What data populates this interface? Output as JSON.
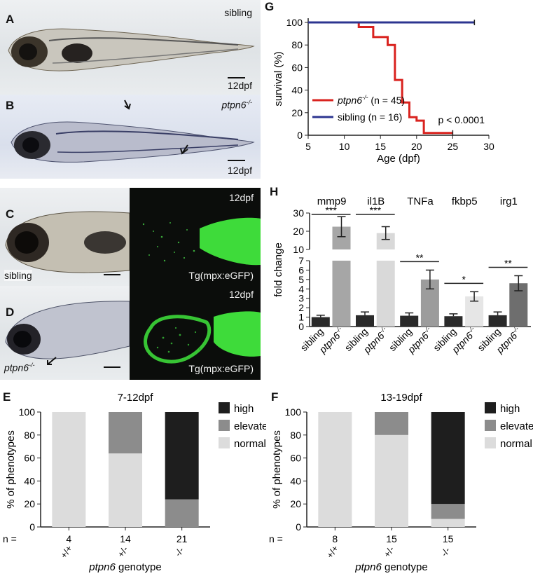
{
  "panels": {
    "A": {
      "letter": "A",
      "label": "sibling",
      "scale": "12dpf"
    },
    "B": {
      "letter": "B",
      "label": "ptpn6",
      "label_sup": "-/-",
      "scale": "12dpf"
    },
    "C": {
      "letter": "C",
      "label": "sibling",
      "fluor_top": "12dpf",
      "fluor_bottom": "Tg(mpx:eGFP)"
    },
    "D": {
      "letter": "D",
      "label": "ptpn6",
      "label_sup": "-/-",
      "fluor_top": "12dpf",
      "fluor_bottom": "Tg(mpx:eGFP)"
    },
    "E": {
      "letter": "E"
    },
    "F": {
      "letter": "F"
    },
    "G": {
      "letter": "G"
    },
    "H": {
      "letter": "H"
    }
  },
  "chart_data": [
    {
      "id": "G",
      "type": "line",
      "xlabel": "Age (dpf)",
      "ylabel": "survival (%)",
      "xlim": [
        5,
        30
      ],
      "ylim": [
        0,
        100
      ],
      "xticks": [
        5,
        10,
        15,
        20,
        25,
        30
      ],
      "yticks": [
        0,
        20,
        40,
        60,
        80,
        100
      ],
      "series": [
        {
          "name": "ptpn6",
          "name_sup": "-/-",
          "n_label": "(n = 45)",
          "color": "#d9231f",
          "step": true,
          "x": [
            5,
            12,
            12,
            14,
            14,
            16,
            16,
            17,
            17,
            18,
            18,
            19,
            19,
            20,
            20,
            21,
            21,
            25
          ],
          "y": [
            100,
            100,
            96,
            96,
            87,
            87,
            80,
            80,
            49,
            49,
            29,
            29,
            16,
            16,
            13,
            13,
            2,
            2
          ]
        },
        {
          "name": "sibling",
          "n_label": "(n = 16)",
          "color": "#2c3590",
          "step": true,
          "x": [
            5,
            28
          ],
          "y": [
            100,
            100
          ]
        }
      ],
      "annotation": "p < 0.0001",
      "legend": "bottom-left"
    },
    {
      "id": "H",
      "type": "bar",
      "ylabel": "fold change",
      "genes": [
        "mmp9",
        "il1B",
        "TNFa",
        "fkbp5",
        "irg1"
      ],
      "group_labels": [
        "sibling",
        "ptpn6"
      ],
      "group_label_sup": "-/-",
      "sibling_values": [
        1.0,
        1.2,
        1.15,
        1.1,
        1.2
      ],
      "sibling_err": [
        0.2,
        0.35,
        0.3,
        0.25,
        0.35
      ],
      "mutant_values": [
        22.5,
        19.0,
        5.0,
        3.2,
        4.6
      ],
      "mutant_err": [
        5.5,
        3.5,
        1.0,
        0.5,
        0.8
      ],
      "mutant_colors": [
        "#a6a6a6",
        "#d9d9d9",
        "#9c9c9c",
        "#e6e6e6",
        "#6e6e6e"
      ],
      "sibling_color": "#2a2a2a",
      "significance": [
        "***",
        "***",
        "**",
        "*",
        "**"
      ],
      "axis_break": {
        "lower": [
          0,
          7
        ],
        "upper": [
          10,
          30
        ]
      },
      "yticks_lower": [
        0,
        1,
        2,
        3,
        4,
        5,
        6,
        7
      ],
      "yticks_upper": [
        10,
        20,
        30
      ]
    },
    {
      "id": "E",
      "type": "bar",
      "stacked": true,
      "title": "7-12dpf",
      "ylabel": "% of phenotypes",
      "xlabel_italic": "ptpn6",
      "xlabel": "genotype",
      "n_prefix": "n =",
      "categories": [
        "+/+",
        "+/-",
        "-/-"
      ],
      "n": [
        "4",
        "14",
        "21"
      ],
      "ylim": [
        0,
        100
      ],
      "yticks": [
        0,
        20,
        40,
        60,
        80,
        100
      ],
      "series": [
        {
          "name": "normal",
          "color": "#dcdcdc",
          "values": [
            100,
            64,
            0
          ]
        },
        {
          "name": "elevated",
          "color": "#8c8c8c",
          "values": [
            0,
            36,
            24
          ]
        },
        {
          "name": "high",
          "color": "#1e1e1e",
          "values": [
            0,
            0,
            76
          ]
        }
      ],
      "legend": "right"
    },
    {
      "id": "F",
      "type": "bar",
      "stacked": true,
      "title": "13-19dpf",
      "ylabel": "% of phenotypes",
      "xlabel_italic": "ptpn6",
      "xlabel": "genotype",
      "n_prefix": "n =",
      "categories": [
        "+/+",
        "+/-",
        "-/-"
      ],
      "n": [
        "8",
        "15",
        "15"
      ],
      "ylim": [
        0,
        100
      ],
      "yticks": [
        0,
        20,
        40,
        60,
        80,
        100
      ],
      "series": [
        {
          "name": "normal",
          "color": "#dcdcdc",
          "values": [
            100,
            80,
            7
          ]
        },
        {
          "name": "elevated",
          "color": "#8c8c8c",
          "values": [
            0,
            20,
            13
          ]
        },
        {
          "name": "high",
          "color": "#1e1e1e",
          "values": [
            0,
            0,
            80
          ]
        }
      ],
      "legend": "right"
    }
  ]
}
